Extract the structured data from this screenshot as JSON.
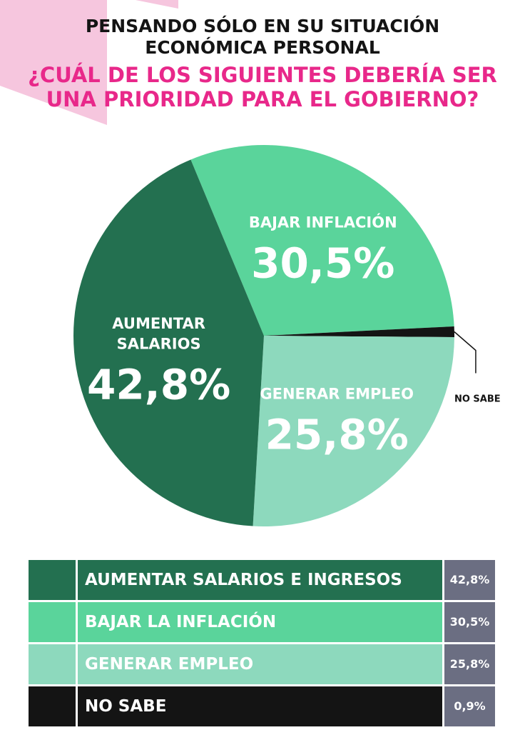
{
  "header": {
    "line1": "PENSANDO SÓLO EN SU SITUACIÓN",
    "line2": "ECONÓMICA PERSONAL",
    "question1": "¿CUÁL DE LOS SIGUIENTES DEBERÍA SER",
    "question2": "UNA PRIORIDAD PARA EL GOBIERNO?"
  },
  "colors": {
    "title": "#141414",
    "question": "#e8288a",
    "accent_pink": "#f6c6de",
    "value_cell": "#6b6e82"
  },
  "chart_data": {
    "type": "pie",
    "title": "PENSANDO SÓLO EN SU SITUACIÓN ECONÓMICA PERSONAL ¿CUÁL DE LOS SIGUIENTES DEBERÍA SER UNA PRIORIDAD PARA EL GOBIERNO?",
    "slices": [
      {
        "label_lines": [
          "BAJAR INFLACIÓN"
        ],
        "value": 30.5,
        "value_label": "30,5%",
        "color": "#5ad49b"
      },
      {
        "label_lines": [
          "NO SABE"
        ],
        "value": 0.9,
        "value_label": "",
        "color": "#141414"
      },
      {
        "label_lines": [
          "GENERAR EMPLEO"
        ],
        "value": 25.8,
        "value_label": "25,8%",
        "color": "#8dd9bd"
      },
      {
        "label_lines": [
          "AUMENTAR",
          "SALARIOS"
        ],
        "value": 42.8,
        "value_label": "42,8%",
        "color": "#237050"
      }
    ]
  },
  "legend": {
    "rows": [
      {
        "label": "AUMENTAR SALARIOS E INGRESOS",
        "value": "42,8%",
        "color": "#237050"
      },
      {
        "label": "BAJAR LA INFLACIÓN",
        "value": "30,5%",
        "color": "#5ad49b"
      },
      {
        "label": "GENERAR EMPLEO",
        "value": "25,8%",
        "color": "#8dd9bd"
      },
      {
        "label": "NO SABE",
        "value": "0,9%",
        "color": "#141414"
      }
    ]
  }
}
